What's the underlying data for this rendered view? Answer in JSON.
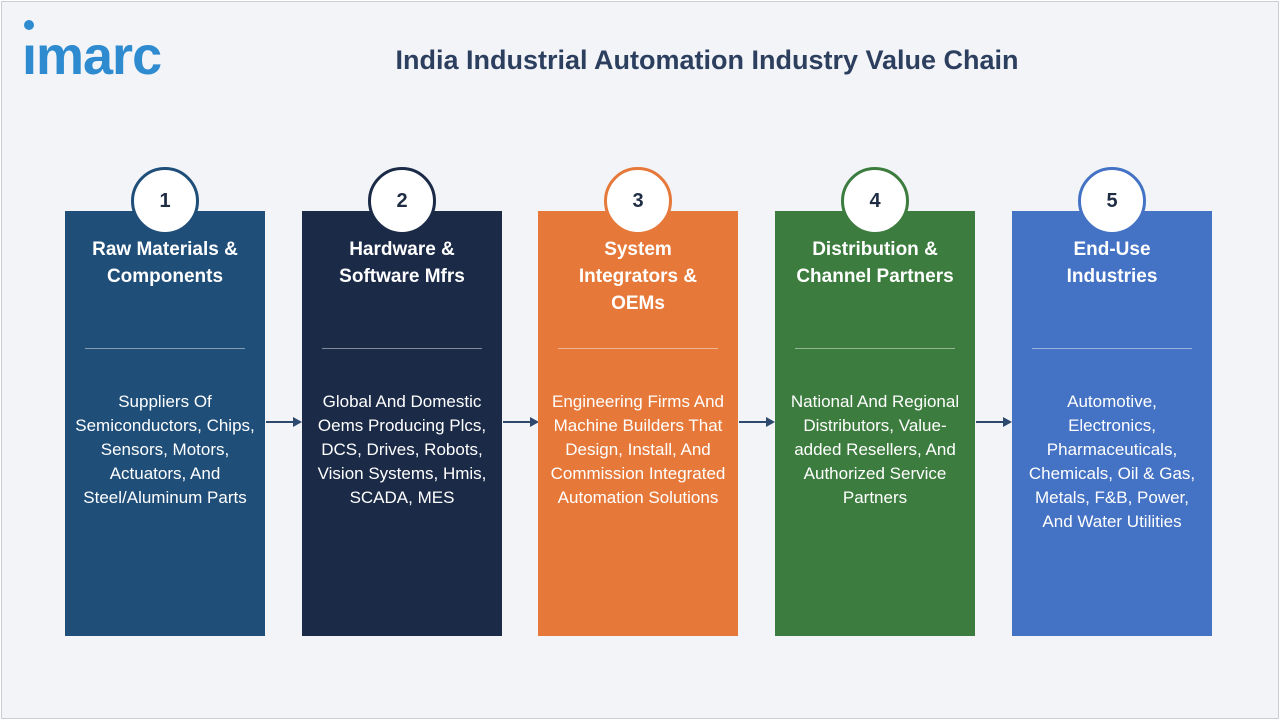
{
  "brand": {
    "logo_text": "imarc",
    "color": "#2e8bd0"
  },
  "title": "India Industrial Automation Industry Value Chain",
  "stages": [
    {
      "number": "1",
      "title": "Raw Materials & Components",
      "description": "Suppliers Of Semiconductors, Chips, Sensors, Motors, Actuators, And Steel/Aluminum Parts",
      "color": "#1f4e79"
    },
    {
      "number": "2",
      "title": "Hardware & Software Mfrs",
      "description": "Global And Domestic Oems Producing Plcs, DCS, Drives, Robots, Vision Systems, Hmis, SCADA, MES",
      "color": "#1b2a47"
    },
    {
      "number": "3",
      "title": "System Integrators & OEMs",
      "description": "Engineering Firms And Machine Builders That Design, Install, And Commission Integrated Automation Solutions",
      "color": "#e6793a"
    },
    {
      "number": "4",
      "title": "Distribution & Channel Partners",
      "description": "National And Regional Distributors, Value-added Resellers, And Authorized Service Partners",
      "color": "#3c7c3e"
    },
    {
      "number": "5",
      "title": "End-Use Industries",
      "description": "Automotive, Electronics, Pharmaceuticals, Chemicals, Oil & Gas, Metals, F&B, Power, And Water Utilities",
      "color": "#4472c4"
    }
  ],
  "arrow_color": "#2d4a6e"
}
